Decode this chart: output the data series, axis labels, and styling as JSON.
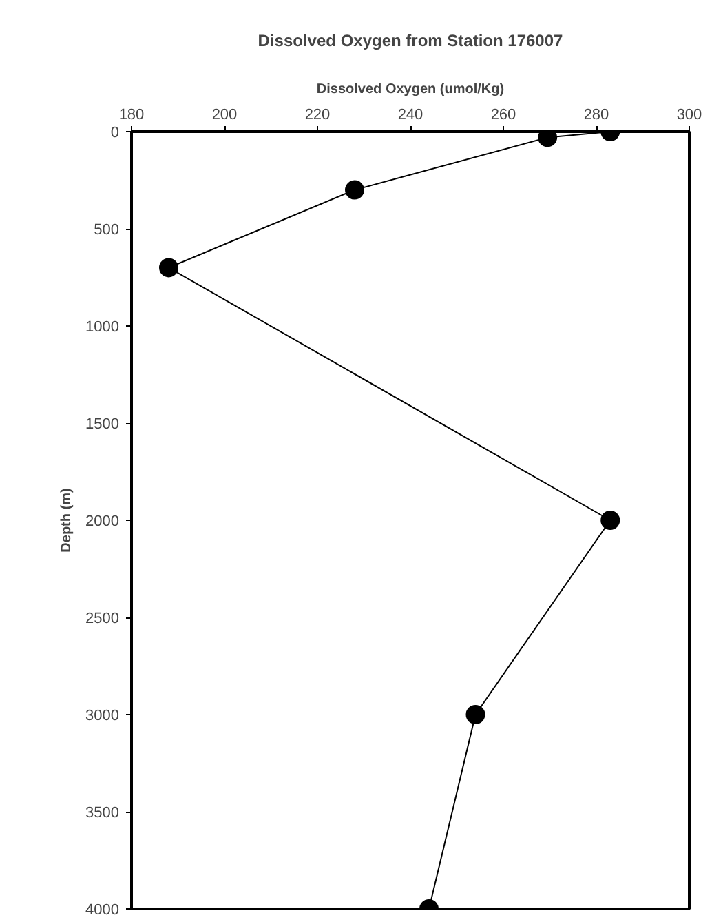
{
  "chart_data": {
    "type": "line",
    "title": "Dissolved Oxygen from Station 176007",
    "xlabel": "Dissolved Oxygen (umol/Kg)",
    "ylabel": "Depth (m)",
    "x": [
      283,
      269.5,
      228,
      188,
      283,
      254,
      244
    ],
    "values": [
      0,
      30,
      300,
      700,
      2000,
      3000,
      4000
    ],
    "color": "#000000",
    "marker": "circle",
    "line_style": "solid",
    "grid": false,
    "xlim": [
      180,
      300
    ],
    "xticks": [
      180,
      200,
      220,
      240,
      260,
      280,
      300
    ],
    "ylim": [
      4000,
      0
    ],
    "yticks": [
      0,
      500,
      1000,
      1500,
      2000,
      2500,
      3000,
      3500,
      4000
    ]
  }
}
